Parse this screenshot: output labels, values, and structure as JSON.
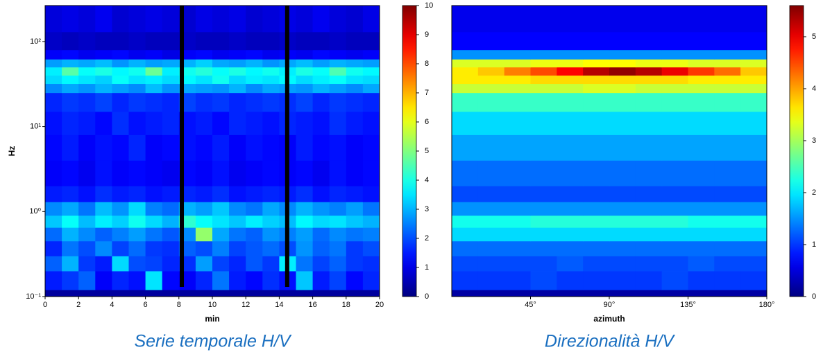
{
  "chart_data": [
    {
      "type": "heatmap",
      "title": "Serie temporale H/V",
      "xlabel": "min",
      "ylabel": "Hz",
      "colormap": "jet",
      "ylog": true,
      "xlim": [
        0,
        20
      ],
      "xticks": [
        0,
        2,
        4,
        6,
        8,
        10,
        12,
        14,
        16,
        18,
        20
      ],
      "ylim": [
        0.1,
        265
      ],
      "yticks": [
        {
          "value": 0.1,
          "label": "10⁻¹"
        },
        {
          "value": 1,
          "label": "10⁰"
        },
        {
          "value": 10,
          "label": "10¹"
        },
        {
          "value": 100,
          "label": "10²"
        }
      ],
      "zlim": [
        0,
        10
      ],
      "zticks": [
        0,
        1,
        2,
        3,
        4,
        5,
        6,
        7,
        8,
        9,
        10
      ],
      "xedges": [
        0,
        1,
        2,
        3,
        4,
        5,
        6,
        7,
        8,
        9,
        10,
        11,
        12,
        13,
        14,
        15,
        16,
        17,
        18,
        19,
        20
      ],
      "yedges": [
        0.1,
        0.12,
        0.2,
        0.3,
        0.45,
        0.65,
        0.9,
        1.3,
        2,
        4,
        8,
        15,
        25,
        32,
        40,
        50,
        62,
        80,
        130,
        265
      ],
      "gaps": [
        [
          8.05,
          8.3
        ],
        [
          14.35,
          14.6
        ]
      ],
      "z": [
        [
          0.3,
          0.3,
          0.3,
          0.3,
          0.3,
          0.3,
          0.3,
          0.3,
          0.3,
          0.3,
          0.3,
          0.3,
          0.3,
          0.3,
          0.3,
          0.3,
          0.3,
          0.3,
          0.3,
          0.3
        ],
        [
          1.5,
          1.8,
          2.2,
          1.2,
          1.6,
          1.4,
          3.5,
          1.3,
          1.2,
          1.6,
          2.4,
          1.5,
          1.3,
          1.7,
          1.4,
          3.2,
          1.5,
          1.9,
          1.3,
          1.6
        ],
        [
          2.2,
          3.0,
          1.8,
          1.5,
          3.4,
          2.0,
          1.9,
          1.6,
          1.7,
          2.8,
          1.9,
          1.6,
          2.1,
          1.8,
          3.6,
          2.4,
          1.9,
          2.2,
          1.8,
          1.7
        ],
        [
          1.6,
          2.4,
          2.0,
          2.6,
          1.9,
          2.3,
          1.8,
          1.7,
          2.2,
          2.0,
          2.5,
          1.9,
          2.1,
          2.3,
          2.0,
          2.7,
          2.2,
          2.4,
          1.8,
          2.0
        ],
        [
          2.3,
          3.0,
          2.6,
          2.2,
          2.5,
          2.8,
          2.4,
          2.1,
          2.6,
          5.2,
          2.9,
          2.4,
          2.2,
          2.7,
          2.5,
          2.8,
          2.3,
          2.6,
          2.4,
          2.5
        ],
        [
          3.2,
          3.8,
          3.1,
          3.6,
          3.3,
          3.9,
          3.4,
          3.0,
          4.2,
          3.8,
          3.5,
          3.2,
          3.6,
          3.3,
          3.1,
          3.7,
          3.4,
          3.5,
          3.2,
          3.0
        ],
        [
          2.6,
          2.9,
          2.4,
          3.1,
          2.7,
          3.4,
          2.5,
          2.3,
          3.0,
          2.8,
          3.2,
          2.6,
          2.4,
          2.9,
          2.6,
          3.0,
          2.7,
          2.5,
          2.8,
          2.4
        ],
        [
          1.5,
          1.6,
          1.4,
          1.7,
          1.5,
          1.6,
          1.4,
          1.5,
          1.6,
          1.5,
          1.7,
          1.4,
          1.5,
          1.6,
          1.5,
          1.7,
          1.4,
          1.6,
          1.5,
          1.4
        ],
        [
          1.2,
          1.3,
          1.1,
          1.4,
          1.2,
          1.3,
          1.2,
          1.1,
          1.3,
          1.2,
          1.4,
          1.1,
          1.2,
          1.3,
          1.2,
          1.3,
          1.1,
          1.4,
          1.2,
          1.3
        ],
        [
          1.3,
          1.5,
          1.2,
          1.4,
          1.3,
          1.6,
          1.2,
          1.3,
          1.4,
          1.3,
          1.5,
          1.2,
          1.4,
          1.3,
          1.2,
          1.5,
          1.3,
          1.4,
          1.2,
          1.3
        ],
        [
          1.4,
          1.6,
          1.5,
          1.3,
          1.7,
          1.4,
          1.5,
          1.6,
          1.4,
          1.5,
          1.3,
          1.6,
          1.5,
          1.4,
          1.6,
          1.5,
          1.4,
          1.7,
          1.5,
          1.4
        ],
        [
          1.6,
          1.8,
          1.7,
          1.9,
          1.6,
          1.8,
          1.7,
          1.6,
          1.9,
          1.7,
          1.8,
          1.6,
          1.7,
          1.8,
          1.7,
          1.9,
          1.6,
          1.8,
          1.7,
          1.6
        ],
        [
          2.6,
          2.9,
          2.7,
          3.0,
          2.8,
          2.6,
          3.1,
          2.7,
          2.9,
          2.8,
          2.7,
          3.0,
          2.6,
          2.9,
          2.8,
          2.7,
          3.0,
          2.8,
          2.6,
          2.9
        ],
        [
          3.4,
          3.7,
          3.5,
          3.3,
          3.8,
          3.5,
          3.6,
          3.4,
          3.7,
          3.5,
          3.9,
          3.4,
          3.6,
          3.5,
          3.7,
          3.4,
          3.6,
          3.8,
          3.5,
          3.4
        ],
        [
          3.6,
          4.6,
          3.8,
          4.0,
          3.7,
          3.9,
          4.8,
          3.6,
          3.9,
          4.1,
          3.8,
          4.0,
          3.7,
          3.9,
          3.6,
          4.0,
          3.8,
          4.5,
          3.9,
          3.7
        ],
        [
          2.8,
          3.0,
          2.9,
          3.1,
          2.7,
          3.0,
          2.8,
          2.9,
          3.0,
          3.3,
          2.9,
          2.8,
          3.0,
          2.7,
          2.9,
          3.1,
          2.8,
          3.0,
          2.9,
          2.8
        ],
        [
          1.2,
          1.3,
          1.1,
          1.2,
          1.3,
          1.1,
          1.2,
          1.0,
          1.2,
          1.3,
          1.1,
          1.2,
          1.3,
          1.1,
          1.2,
          1.1,
          1.3,
          1.2,
          1.1,
          1.2
        ],
        [
          0.7,
          0.6,
          0.7,
          0.6,
          0.6,
          0.7,
          0.6,
          0.6,
          0.7,
          0.6,
          0.6,
          0.7,
          0.6,
          0.6,
          0.7,
          0.6,
          0.6,
          0.7,
          0.6,
          0.6
        ],
        [
          0.9,
          1.0,
          0.9,
          1.1,
          0.8,
          0.9,
          1.0,
          0.9,
          0.8,
          1.0,
          0.9,
          1.0,
          0.8,
          0.9,
          1.0,
          0.9,
          1.1,
          0.9,
          0.8,
          1.0
        ]
      ]
    },
    {
      "type": "heatmap",
      "title": "Direzionalità H/V",
      "xlabel": "azimuth",
      "colormap": "jet",
      "ylog": true,
      "xlim": [
        0,
        180
      ],
      "xticks": [
        {
          "value": 45,
          "label": "45°"
        },
        {
          "value": 90,
          "label": "90°"
        },
        {
          "value": 135,
          "label": "135°"
        },
        {
          "value": 180,
          "label": "180°"
        }
      ],
      "ylim": [
        0.1,
        265
      ],
      "zlim": [
        0,
        5.6
      ],
      "zticks": [
        0,
        1,
        2,
        3,
        4,
        5
      ],
      "xedges": [
        0,
        15,
        30,
        45,
        60,
        75,
        90,
        105,
        120,
        135,
        150,
        165,
        180
      ],
      "yedges": [
        0.1,
        0.12,
        0.2,
        0.3,
        0.45,
        0.65,
        0.9,
        1.3,
        2,
        4,
        8,
        15,
        25,
        32,
        40,
        50,
        62,
        80,
        130,
        265
      ],
      "z": [
        [
          0.2,
          0.2,
          0.2,
          0.2,
          0.2,
          0.2,
          0.2,
          0.2,
          0.2,
          0.2,
          0.2,
          0.2
        ],
        [
          1.0,
          1.0,
          1.0,
          1.1,
          1.0,
          1.0,
          1.0,
          1.0,
          1.1,
          1.0,
          1.0,
          1.0
        ],
        [
          1.1,
          1.1,
          1.1,
          1.1,
          1.2,
          1.1,
          1.1,
          1.1,
          1.1,
          1.2,
          1.1,
          1.1
        ],
        [
          1.3,
          1.3,
          1.3,
          1.3,
          1.3,
          1.3,
          1.3,
          1.3,
          1.3,
          1.3,
          1.3,
          1.3
        ],
        [
          1.9,
          1.9,
          1.9,
          1.9,
          1.9,
          1.9,
          1.9,
          1.9,
          1.9,
          1.9,
          1.9,
          1.9
        ],
        [
          2.2,
          2.2,
          2.2,
          2.3,
          2.3,
          2.3,
          2.3,
          2.3,
          2.3,
          2.2,
          2.2,
          2.2
        ],
        [
          1.5,
          1.5,
          1.5,
          1.5,
          1.5,
          1.5,
          1.5,
          1.5,
          1.5,
          1.5,
          1.5,
          1.5
        ],
        [
          1.1,
          1.1,
          1.1,
          1.1,
          1.1,
          1.1,
          1.1,
          1.1,
          1.1,
          1.1,
          1.1,
          1.1
        ],
        [
          1.3,
          1.3,
          1.3,
          1.3,
          1.3,
          1.3,
          1.3,
          1.3,
          1.3,
          1.3,
          1.3,
          1.3
        ],
        [
          1.6,
          1.6,
          1.6,
          1.6,
          1.6,
          1.6,
          1.6,
          1.6,
          1.6,
          1.6,
          1.6,
          1.6
        ],
        [
          1.9,
          1.9,
          1.9,
          1.9,
          1.9,
          1.9,
          1.9,
          1.9,
          1.9,
          1.9,
          1.9,
          1.9
        ],
        [
          2.4,
          2.4,
          2.4,
          2.4,
          2.4,
          2.4,
          2.4,
          2.4,
          2.4,
          2.4,
          2.4,
          2.4
        ],
        [
          3.2,
          3.2,
          3.2,
          3.2,
          3.2,
          3.3,
          3.3,
          3.2,
          3.2,
          3.2,
          3.2,
          3.2
        ],
        [
          3.6,
          3.6,
          3.6,
          3.7,
          3.7,
          3.7,
          3.7,
          3.7,
          3.7,
          3.6,
          3.6,
          3.6
        ],
        [
          3.6,
          3.8,
          4.2,
          4.5,
          4.9,
          5.3,
          5.5,
          5.3,
          5.0,
          4.6,
          4.3,
          3.8
        ],
        [
          3.3,
          3.3,
          3.3,
          3.4,
          3.4,
          3.5,
          3.5,
          3.4,
          3.4,
          3.3,
          3.3,
          3.3
        ],
        [
          1.5,
          1.5,
          1.5,
          1.5,
          1.5,
          1.5,
          1.5,
          1.5,
          1.5,
          1.5,
          1.5,
          1.5
        ],
        [
          0.7,
          0.7,
          0.7,
          0.7,
          0.7,
          0.7,
          0.7,
          0.7,
          0.7,
          0.7,
          0.7,
          0.7
        ],
        [
          0.6,
          0.6,
          0.6,
          0.6,
          0.6,
          0.6,
          0.6,
          0.6,
          0.6,
          0.6,
          0.6,
          0.6
        ]
      ]
    }
  ]
}
